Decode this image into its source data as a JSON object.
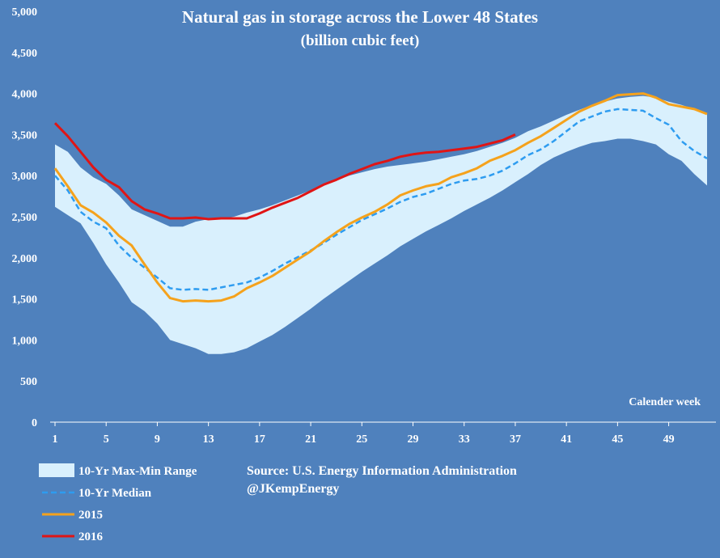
{
  "chart_data": {
    "type": "line",
    "title": "Natural gas in storage across the Lower 48 States",
    "subtitle": "(billion cubic feet)",
    "xlabel": "Calender week",
    "ylabel": "",
    "xlim": [
      1,
      52
    ],
    "ylim": [
      0,
      5000
    ],
    "y_ticks": [
      0,
      500,
      1000,
      1500,
      2000,
      2500,
      3000,
      3500,
      4000,
      4500,
      5000
    ],
    "y_tick_labels": [
      "0",
      "500",
      "1,000",
      "1,500",
      "2,000",
      "2,500",
      "3,000",
      "3,500",
      "4,000",
      "4,500",
      "5,000"
    ],
    "x_ticks": [
      1,
      5,
      9,
      13,
      17,
      21,
      25,
      29,
      33,
      37,
      41,
      45,
      49
    ],
    "x_tick_labels": [
      "1",
      "5",
      "9",
      "13",
      "17",
      "21",
      "25",
      "29",
      "33",
      "37",
      "41",
      "45",
      "49"
    ],
    "grid": false,
    "legend_position": "bottom-left",
    "range_band": {
      "name": "10-Yr Max-Min Range",
      "color": "#d9f0fd",
      "x": [
        1,
        2,
        3,
        4,
        5,
        6,
        7,
        8,
        9,
        10,
        11,
        12,
        13,
        14,
        15,
        16,
        17,
        18,
        19,
        20,
        21,
        22,
        23,
        24,
        25,
        26,
        27,
        28,
        29,
        30,
        31,
        32,
        33,
        34,
        35,
        36,
        37,
        38,
        39,
        40,
        41,
        42,
        43,
        44,
        45,
        46,
        47,
        48,
        49,
        50,
        51,
        52
      ],
      "max": [
        3380,
        3290,
        3100,
        2980,
        2900,
        2760,
        2590,
        2520,
        2450,
        2380,
        2380,
        2440,
        2470,
        2480,
        2500,
        2550,
        2590,
        2640,
        2700,
        2760,
        2820,
        2890,
        2940,
        3000,
        3040,
        3080,
        3110,
        3130,
        3150,
        3170,
        3200,
        3230,
        3260,
        3300,
        3350,
        3400,
        3460,
        3540,
        3600,
        3670,
        3740,
        3800,
        3860,
        3900,
        3940,
        3960,
        3970,
        3950,
        3900,
        3860,
        3810,
        3760
      ],
      "min": [
        2620,
        2520,
        2420,
        2180,
        1920,
        1700,
        1460,
        1350,
        1200,
        1000,
        950,
        900,
        830,
        830,
        850,
        900,
        980,
        1060,
        1160,
        1270,
        1380,
        1500,
        1610,
        1720,
        1830,
        1930,
        2030,
        2140,
        2230,
        2320,
        2400,
        2480,
        2570,
        2650,
        2730,
        2820,
        2920,
        3020,
        3130,
        3220,
        3290,
        3350,
        3400,
        3420,
        3450,
        3450,
        3420,
        3380,
        3260,
        3180,
        3020,
        2880
      ]
    },
    "series": [
      {
        "name": "10-Yr Median",
        "color": "#2e9cf0",
        "dashed": true,
        "x": [
          1,
          2,
          3,
          4,
          5,
          6,
          7,
          8,
          9,
          10,
          11,
          12,
          13,
          14,
          15,
          16,
          17,
          18,
          19,
          20,
          21,
          22,
          23,
          24,
          25,
          26,
          27,
          28,
          29,
          30,
          31,
          32,
          33,
          34,
          35,
          36,
          37,
          38,
          39,
          40,
          41,
          42,
          43,
          44,
          45,
          46,
          47,
          48,
          49,
          50,
          51,
          52
        ],
        "values": [
          3000,
          2820,
          2560,
          2440,
          2360,
          2150,
          2000,
          1880,
          1760,
          1630,
          1610,
          1620,
          1610,
          1640,
          1670,
          1700,
          1760,
          1840,
          1930,
          2010,
          2090,
          2180,
          2280,
          2370,
          2460,
          2530,
          2600,
          2680,
          2740,
          2780,
          2840,
          2900,
          2940,
          2960,
          3000,
          3060,
          3150,
          3250,
          3320,
          3420,
          3540,
          3660,
          3720,
          3780,
          3810,
          3800,
          3790,
          3700,
          3620,
          3420,
          3300,
          3210
        ]
      },
      {
        "name": "2015",
        "color": "#f5a21c",
        "dashed": false,
        "x": [
          1,
          2,
          3,
          4,
          5,
          6,
          7,
          8,
          9,
          10,
          11,
          12,
          13,
          14,
          15,
          16,
          17,
          18,
          19,
          20,
          21,
          22,
          23,
          24,
          25,
          26,
          27,
          28,
          29,
          30,
          31,
          32,
          33,
          34,
          35,
          36,
          37,
          38,
          39,
          40,
          41,
          42,
          43,
          44,
          45,
          46,
          47,
          48,
          49,
          50,
          51,
          52
        ],
        "values": [
          3090,
          2870,
          2640,
          2550,
          2430,
          2270,
          2150,
          1920,
          1700,
          1510,
          1470,
          1480,
          1470,
          1480,
          1530,
          1630,
          1700,
          1780,
          1880,
          1980,
          2080,
          2200,
          2310,
          2410,
          2490,
          2560,
          2650,
          2760,
          2820,
          2870,
          2900,
          2980,
          3030,
          3090,
          3180,
          3240,
          3310,
          3400,
          3480,
          3580,
          3680,
          3780,
          3850,
          3910,
          3980,
          3990,
          4000,
          3950,
          3870,
          3840,
          3810,
          3750
        ]
      },
      {
        "name": "2016",
        "color": "#e01515",
        "dashed": false,
        "x": [
          1,
          2,
          3,
          4,
          5,
          6,
          7,
          8,
          9,
          10,
          11,
          12,
          13,
          14,
          15,
          16,
          17,
          18,
          19,
          20,
          21,
          22,
          23,
          24,
          25,
          26,
          27,
          28,
          29,
          30,
          31,
          32,
          33,
          34,
          35,
          36,
          37
        ],
        "values": [
          3640,
          3480,
          3290,
          3100,
          2950,
          2860,
          2690,
          2590,
          2540,
          2480,
          2480,
          2490,
          2470,
          2480,
          2480,
          2480,
          2540,
          2610,
          2670,
          2730,
          2810,
          2890,
          2950,
          3020,
          3080,
          3140,
          3180,
          3230,
          3260,
          3280,
          3290,
          3310,
          3330,
          3350,
          3390,
          3430,
          3500
        ]
      }
    ]
  },
  "source": {
    "line1": "Source: U.S. Energy Information Administration",
    "line2": "@JKempEnergy"
  }
}
